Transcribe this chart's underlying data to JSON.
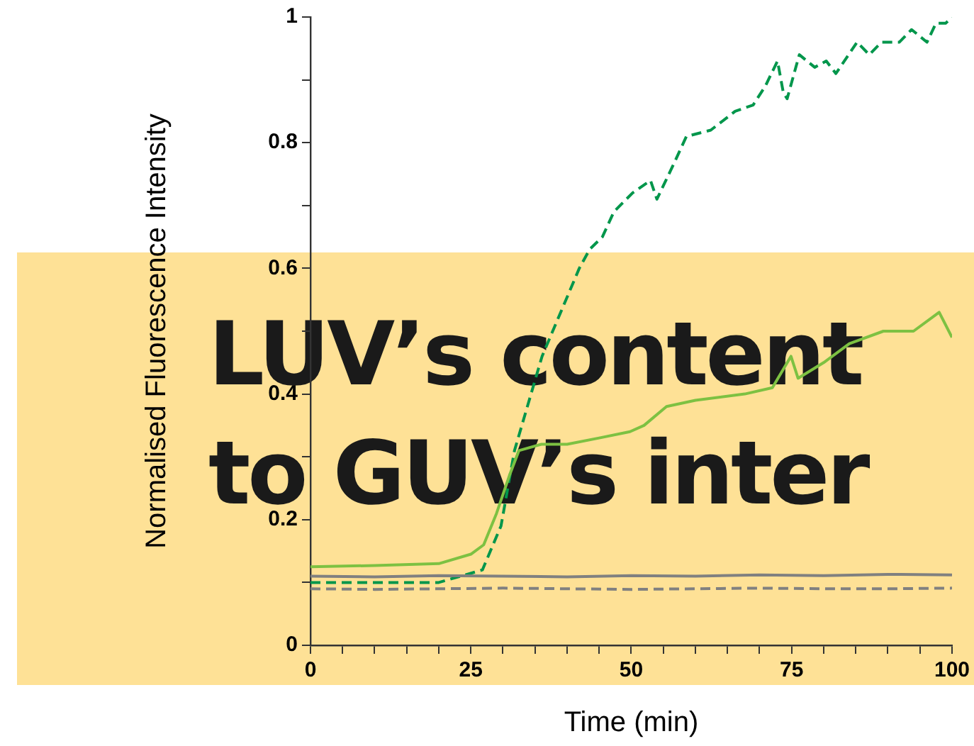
{
  "chart_data": {
    "type": "line",
    "xlabel": "Time (min)",
    "ylabel": "Normalised Fluorescence Intensity",
    "annotations": [
      "LUV’s content to GUV’s inter"
    ],
    "xlim": [
      0,
      100
    ],
    "ylim": [
      0,
      1
    ],
    "xticks": [
      0,
      {
        "value": 5,
        "label": null
      },
      {
        "value": 10,
        "label": null
      },
      {
        "value": 15,
        "label": null
      },
      {
        "value": 20,
        "label": null
      },
      25,
      {
        "value": 30,
        "label": null
      },
      {
        "value": 35,
        "label": null
      },
      {
        "value": 40,
        "label": null
      },
      {
        "value": 45,
        "label": null
      },
      50,
      {
        "value": 55,
        "label": null
      },
      {
        "value": 60,
        "label": null
      },
      {
        "value": 65,
        "label": null
      },
      {
        "value": 70,
        "label": null
      },
      75,
      {
        "value": 80,
        "label": null
      },
      {
        "value": 85,
        "label": null
      },
      {
        "value": 90,
        "label": null
      },
      {
        "value": 95,
        "label": null
      },
      100
    ],
    "yticks": [
      0,
      {
        "value": 0.1,
        "label": null
      },
      0.2,
      {
        "value": 0.3,
        "label": null
      },
      0.4,
      {
        "value": 0.5,
        "label": null
      },
      0.6,
      {
        "value": 0.7,
        "label": null
      },
      0.8,
      {
        "value": 0.9,
        "label": null
      },
      1
    ],
    "grid": false,
    "marker": "none",
    "series": [
      {
        "color": "#808080",
        "line_style": "solid",
        "x": [
          0,
          10,
          20,
          30,
          40,
          50,
          60,
          70,
          80,
          90,
          100
        ],
        "values": [
          0.11,
          0.109,
          0.111,
          0.11,
          0.109,
          0.111,
          0.11,
          0.112,
          0.111,
          0.113,
          0.112
        ]
      },
      {
        "color": "#808080",
        "line_style": "dashed",
        "x": [
          0,
          10,
          20,
          30,
          40,
          50,
          60,
          70,
          80,
          90,
          100
        ],
        "values": [
          0.09,
          0.089,
          0.09,
          0.091,
          0.09,
          0.089,
          0.09,
          0.091,
          0.09,
          0.09,
          0.091
        ]
      },
      {
        "color": "#7dc142",
        "line_style": "solid",
        "x": [
          0,
          10,
          20,
          25,
          27,
          29,
          31,
          32.5,
          36,
          40,
          45,
          49.8,
          52,
          55.5,
          60,
          67.7,
          72,
          74.9,
          76,
          80,
          84,
          89.3,
          94,
          98,
          100
        ],
        "values": [
          0.125,
          0.127,
          0.13,
          0.145,
          0.16,
          0.21,
          0.27,
          0.31,
          0.32,
          0.32,
          0.33,
          0.34,
          0.35,
          0.38,
          0.39,
          0.4,
          0.41,
          0.46,
          0.425,
          0.45,
          0.48,
          0.5,
          0.5,
          0.53,
          0.49
        ]
      },
      {
        "color": "#00964b",
        "line_style": "dashed",
        "x": [
          0,
          10,
          20,
          26.8,
          29.7,
          31.8,
          36.1,
          41.9,
          43.5,
          45.5,
          47.3,
          50.2,
          53,
          54,
          56.8,
          58.6,
          62.4,
          66.2,
          69,
          70.9,
          72.8,
          73.7,
          74.3,
          76.2,
          78.6,
          80.4,
          81.9,
          85.2,
          87.1,
          89,
          91.8,
          93.7,
          96.1,
          97.5,
          99,
          100
        ],
        "values": [
          0.1,
          0.1,
          0.1,
          0.12,
          0.19,
          0.31,
          0.46,
          0.6,
          0.63,
          0.65,
          0.69,
          0.72,
          0.74,
          0.71,
          0.77,
          0.81,
          0.82,
          0.85,
          0.86,
          0.89,
          0.93,
          0.88,
          0.87,
          0.94,
          0.92,
          0.93,
          0.91,
          0.96,
          0.94,
          0.96,
          0.96,
          0.98,
          0.96,
          0.99,
          0.99,
          1
        ]
      }
    ]
  }
}
